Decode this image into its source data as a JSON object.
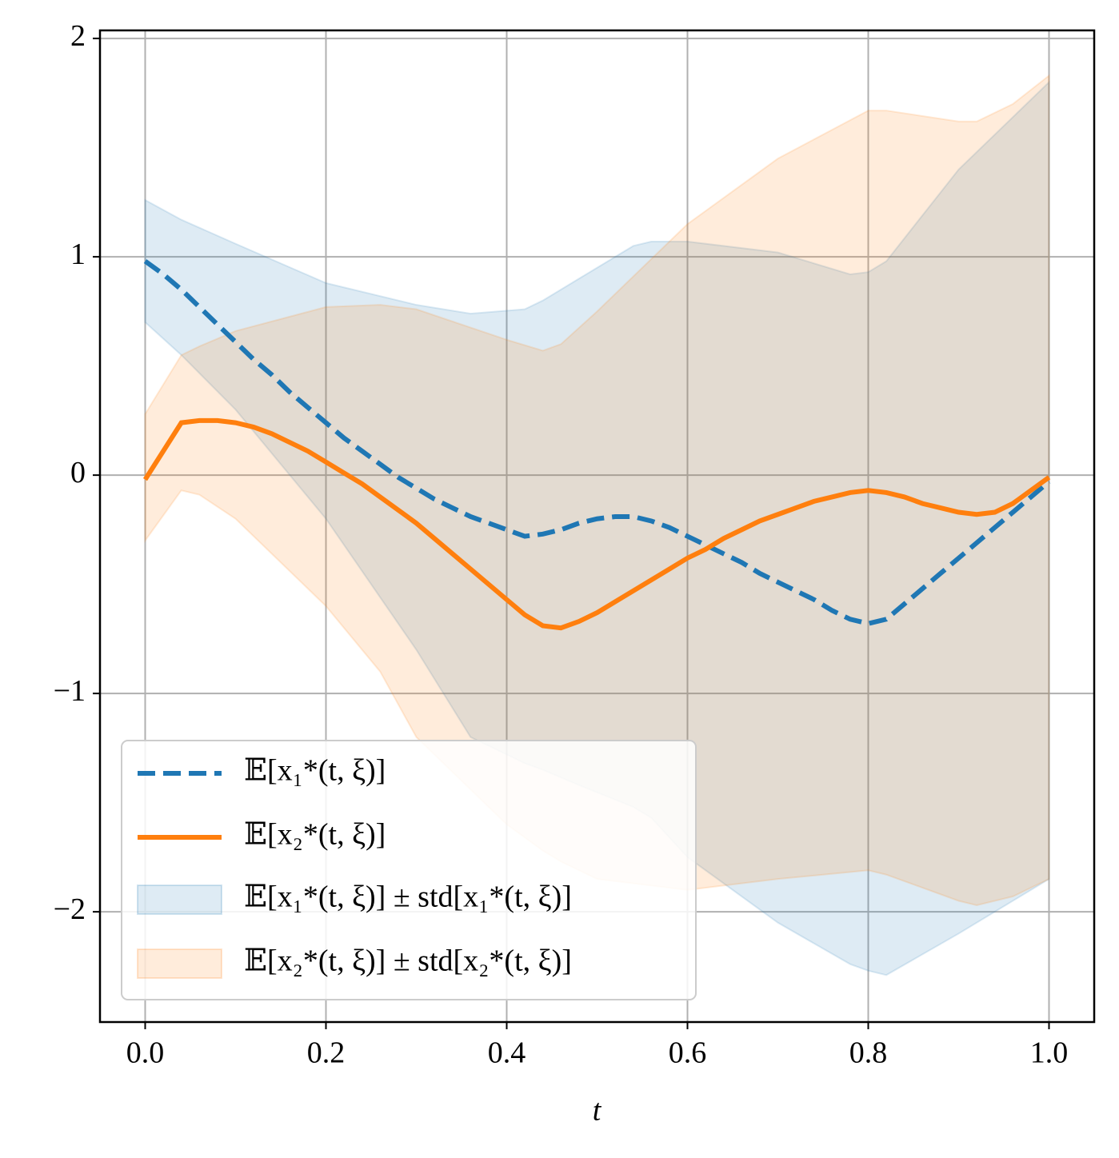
{
  "chart_data": {
    "type": "line",
    "x_label": "t",
    "x": [
      0,
      0.02,
      0.04,
      0.06,
      0.08,
      0.1,
      0.12,
      0.14,
      0.16,
      0.18,
      0.2,
      0.22,
      0.24,
      0.26,
      0.28,
      0.3,
      0.32,
      0.34,
      0.36,
      0.38,
      0.4,
      0.42,
      0.44,
      0.46,
      0.48,
      0.5,
      0.52,
      0.54,
      0.56,
      0.58,
      0.6,
      0.62,
      0.64,
      0.66,
      0.68,
      0.7,
      0.72,
      0.74,
      0.76,
      0.78,
      0.8,
      0.82,
      0.84,
      0.86,
      0.88,
      0.9,
      0.92,
      0.94,
      0.96,
      0.98,
      1.0
    ],
    "series": [
      {
        "name": "𝔼[x₁*(t, ξ)]",
        "color": "#1f77b4",
        "dash": true,
        "values": [
          0.98,
          0.92,
          0.85,
          0.77,
          0.69,
          0.61,
          0.53,
          0.46,
          0.38,
          0.31,
          0.24,
          0.17,
          0.11,
          0.05,
          -0.01,
          -0.06,
          -0.11,
          -0.15,
          -0.19,
          -0.22,
          -0.25,
          -0.28,
          -0.27,
          -0.25,
          -0.22,
          -0.2,
          -0.19,
          -0.19,
          -0.21,
          -0.24,
          -0.28,
          -0.32,
          -0.36,
          -0.4,
          -0.45,
          -0.49,
          -0.53,
          -0.57,
          -0.62,
          -0.66,
          -0.68,
          -0.66,
          -0.59,
          -0.52,
          -0.45,
          -0.38,
          -0.31,
          -0.24,
          -0.17,
          -0.1,
          -0.03
        ]
      },
      {
        "name": "𝔼[x₂*(t, ξ)]",
        "color": "#ff7f0e",
        "dash": false,
        "values": [
          -0.02,
          0.11,
          0.24,
          0.25,
          0.25,
          0.24,
          0.22,
          0.19,
          0.15,
          0.11,
          0.06,
          0.01,
          -0.04,
          -0.1,
          -0.16,
          -0.22,
          -0.29,
          -0.36,
          -0.43,
          -0.5,
          -0.57,
          -0.64,
          -0.69,
          -0.7,
          -0.67,
          -0.63,
          -0.58,
          -0.53,
          -0.48,
          -0.43,
          -0.38,
          -0.34,
          -0.29,
          -0.25,
          -0.21,
          -0.18,
          -0.15,
          -0.12,
          -0.1,
          -0.08,
          -0.07,
          -0.08,
          -0.1,
          -0.13,
          -0.15,
          -0.17,
          -0.18,
          -0.17,
          -0.13,
          -0.07,
          -0.01
        ]
      }
    ],
    "bands": [
      {
        "name": "𝔼[x₁*(t, ξ)] ± std[x₁*(t, ξ)]",
        "color": "#1f77b4",
        "x": [
          0,
          0.04,
          0.1,
          0.2,
          0.3,
          0.36,
          0.42,
          0.44,
          0.48,
          0.54,
          0.56,
          0.6,
          0.7,
          0.78,
          0.8,
          0.82,
          0.9,
          1.0
        ],
        "upper": [
          1.26,
          1.17,
          1.06,
          0.88,
          0.78,
          0.74,
          0.76,
          0.8,
          0.9,
          1.05,
          1.07,
          1.07,
          1.02,
          0.92,
          0.93,
          0.98,
          1.4,
          1.8
        ],
        "lower": [
          0.7,
          0.55,
          0.3,
          -0.2,
          -0.8,
          -1.2,
          -1.32,
          -1.35,
          -1.42,
          -1.52,
          -1.57,
          -1.75,
          -2.05,
          -2.24,
          -2.27,
          -2.29,
          -2.1,
          -1.85
        ]
      },
      {
        "name": "𝔼[x₂*(t, ξ)] ± std[x₂*(t, ξ)]",
        "color": "#ff7f0e",
        "x": [
          0,
          0.04,
          0.06,
          0.1,
          0.2,
          0.26,
          0.3,
          0.4,
          0.44,
          0.46,
          0.5,
          0.6,
          0.7,
          0.8,
          0.82,
          0.9,
          0.92,
          0.96,
          1.0
        ],
        "upper": [
          0.28,
          0.55,
          0.59,
          0.66,
          0.77,
          0.78,
          0.76,
          0.62,
          0.57,
          0.6,
          0.75,
          1.15,
          1.45,
          1.67,
          1.67,
          1.62,
          1.62,
          1.7,
          1.83
        ],
        "lower": [
          -0.3,
          -0.07,
          -0.09,
          -0.2,
          -0.6,
          -0.9,
          -1.2,
          -1.6,
          -1.72,
          -1.77,
          -1.85,
          -1.9,
          -1.85,
          -1.81,
          -1.83,
          -1.95,
          -1.97,
          -1.93,
          -1.85
        ]
      }
    ],
    "xlim": [
      -0.05,
      1.05
    ],
    "ylim": [
      -2.505,
      2.037
    ],
    "xticks": [
      {
        "value": 0,
        "label": "0.0"
      },
      {
        "value": 0.2,
        "label": "0.2"
      },
      {
        "value": 0.4,
        "label": "0.4"
      },
      {
        "value": 0.6,
        "label": "0.6"
      },
      {
        "value": 0.8,
        "label": "0.8"
      },
      {
        "value": 1.0,
        "label": "1.0"
      }
    ],
    "yticks": [
      {
        "value": -2,
        "label": "−2"
      },
      {
        "value": -1,
        "label": "−1"
      },
      {
        "value": 0,
        "label": "0"
      },
      {
        "value": 1,
        "label": "1"
      },
      {
        "value": 2,
        "label": "2"
      }
    ],
    "grid": true,
    "legend": "lower left"
  }
}
